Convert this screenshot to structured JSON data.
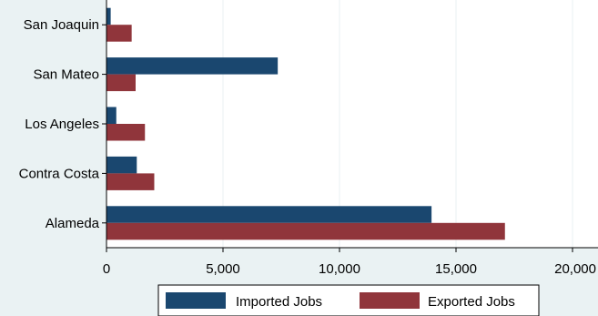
{
  "chart_data": {
    "type": "bar",
    "orientation": "horizontal",
    "categories": [
      "San Joaquin",
      "San Mateo",
      "Los Angeles",
      "Contra Costa",
      "Alameda"
    ],
    "series": [
      {
        "name": "Imported Jobs",
        "color": "#1a476f",
        "values": [
          180,
          7350,
          420,
          1300,
          13950
        ]
      },
      {
        "name": "Exported Jobs",
        "color": "#90353b",
        "values": [
          1080,
          1250,
          1650,
          2050,
          17100
        ]
      }
    ],
    "xlim": [
      0,
      20000
    ],
    "xticks": [
      0,
      5000,
      10000,
      15000,
      20000
    ],
    "xtick_labels": [
      "0",
      "5,000",
      "10,000",
      "15,000",
      "20,000"
    ],
    "grid": true,
    "legend_position": "bottom",
    "title": "",
    "xlabel": "",
    "ylabel": ""
  }
}
